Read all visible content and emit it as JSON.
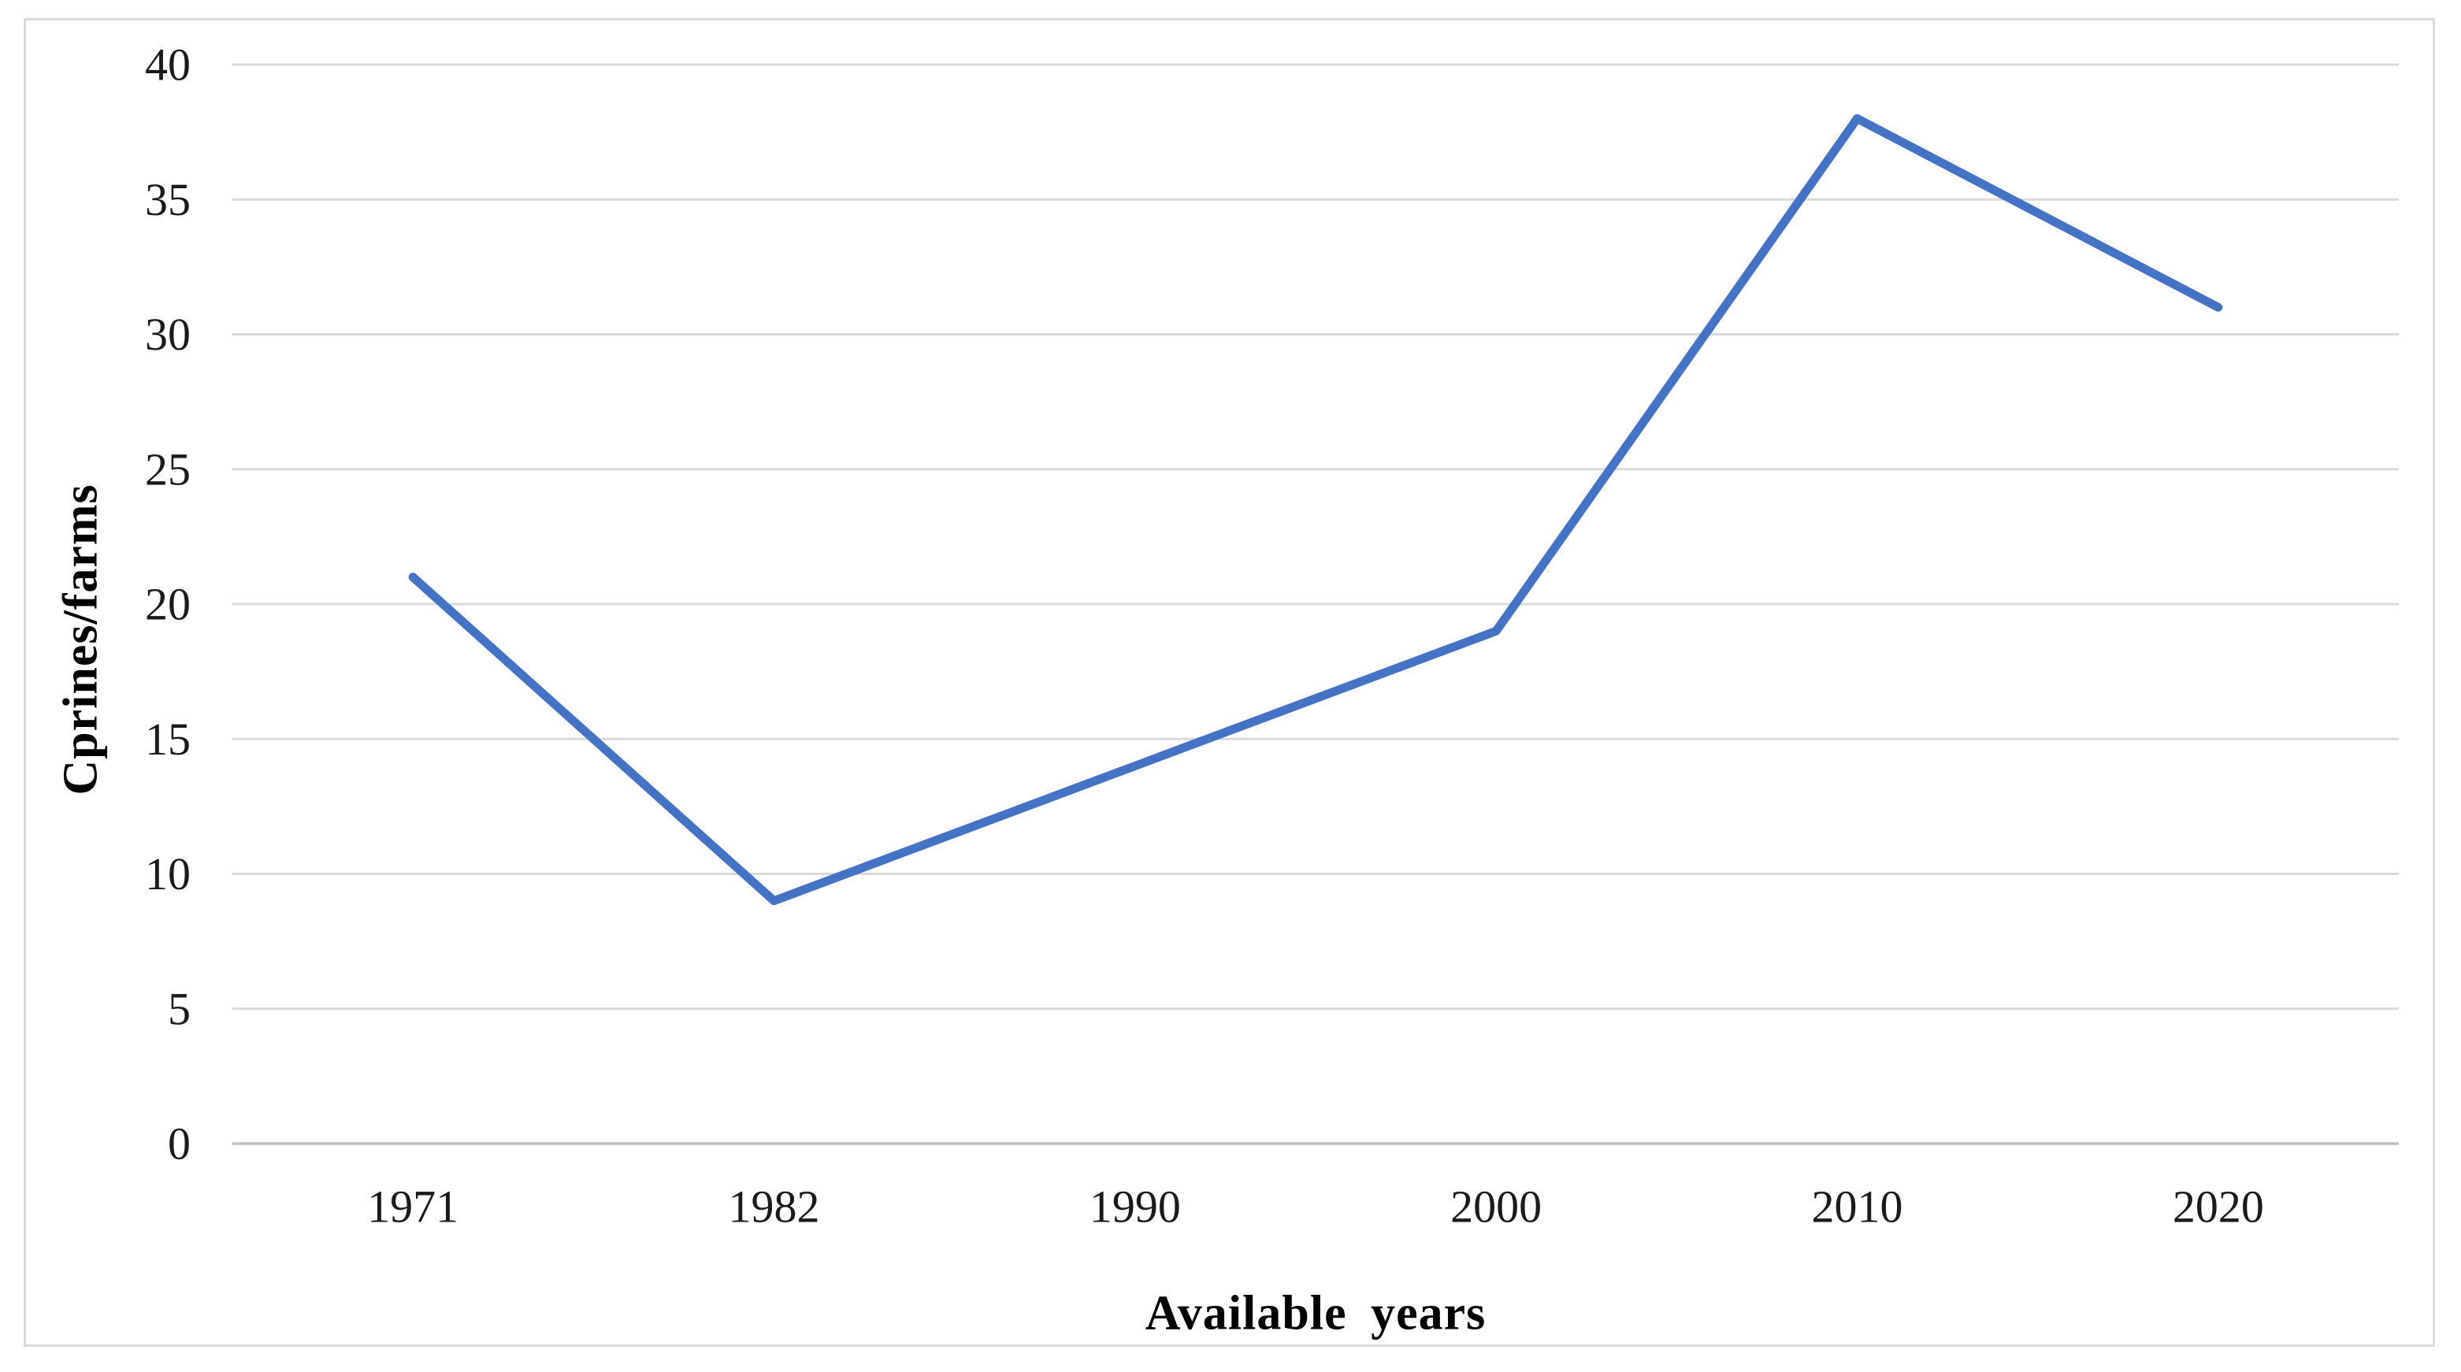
{
  "chart_data": {
    "type": "line",
    "title": "",
    "categories": [
      "1971",
      "1982",
      "1990",
      "2000",
      "2010",
      "2020"
    ],
    "series": [
      {
        "name": "Cprines/farms",
        "values": [
          21,
          9,
          14,
          19,
          38,
          31
        ]
      }
    ],
    "xlabel": "Available years",
    "ylabel": "Cprines/farms",
    "ylim": [
      0,
      40
    ],
    "ytick_step": 5,
    "y_tick_labels": [
      "0",
      "5",
      "10",
      "15",
      "20",
      "25",
      "30",
      "35",
      "40"
    ],
    "grid": "horizontal",
    "legend": "none",
    "markers": "none",
    "line_color": "#4472C4",
    "gridline_color": "#d9d9d9",
    "axis_line_color": "#bfbfbf",
    "frame_border_color": "#d9d9d9",
    "tick_label_color": "#1a1a1a",
    "background_color": "#ffffff"
  }
}
